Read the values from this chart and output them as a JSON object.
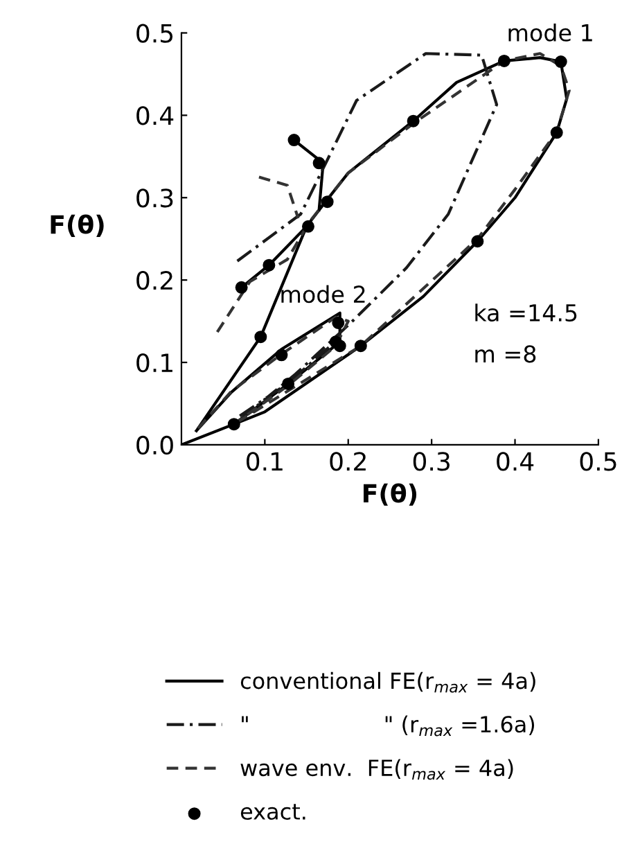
{
  "chart_data": {
    "type": "line",
    "xlabel": "F(θ)",
    "ylabel": "F(θ)",
    "xlim": [
      0,
      0.5
    ],
    "ylim": [
      0,
      0.5
    ],
    "xticks": [
      0.1,
      0.2,
      0.3,
      0.4,
      0.5
    ],
    "yticks": [
      {
        "value": 0,
        "label": "0.0"
      },
      0.1,
      0.2,
      0.3,
      0.4,
      0.5
    ],
    "grid": false,
    "legend": "bottom",
    "series": [
      {
        "name": "conventional FE(r$_{max}$ = 4a)",
        "color": "#000000",
        "line_style": "solid",
        "marker": "none",
        "x": [
          0.0,
          0.063,
          0.1,
          0.215,
          0.29,
          0.355,
          0.4,
          0.45,
          0.462,
          0.455,
          0.43,
          0.387,
          0.33,
          0.278,
          0.2,
          0.165,
          0.15,
          0.095,
          0.018,
          null,
          0.165,
          0.17,
          0.135,
          null,
          0.072,
          0.105,
          0.15,
          0.165,
          null,
          0.018,
          0.06,
          0.12,
          0.19,
          0.19,
          0.128,
          0.063
        ],
        "values": [
          0.0,
          0.025,
          0.04,
          0.12,
          0.18,
          0.247,
          0.3,
          0.379,
          0.42,
          0.465,
          0.47,
          0.466,
          0.44,
          0.393,
          0.33,
          0.285,
          0.265,
          0.131,
          0.017,
          null,
          0.285,
          0.342,
          0.37,
          null,
          0.191,
          0.218,
          0.265,
          0.285,
          null,
          0.017,
          0.064,
          0.116,
          0.16,
          0.125,
          0.074,
          0.025
        ]
      },
      {
        "name": "\"                   \" (r$_{max}$ =1.6a)",
        "color": "#1a1a1a",
        "line_style": "dashdot",
        "marker": "none",
        "x": [
          0.067,
          0.143,
          0.21,
          0.293,
          0.36,
          0.378,
          0.32,
          0.27,
          0.203,
          0.137,
          0.07,
          null,
          0.07,
          0.128,
          0.19
        ],
        "values": [
          0.223,
          0.28,
          0.418,
          0.475,
          0.473,
          0.413,
          0.28,
          0.215,
          0.148,
          0.086,
          0.03,
          null,
          0.035,
          0.075,
          0.13
        ]
      },
      {
        "name": "wave env.  FE(r$_{max}$ = 4a)",
        "color": "#333333",
        "line_style": "dashed",
        "marker": "none",
        "x": [
          0.043,
          0.082,
          0.127,
          0.153,
          0.2,
          0.278,
          0.387,
          0.43,
          0.455,
          0.465,
          0.45,
          0.4,
          0.355,
          0.215,
          0.063,
          null,
          0.093,
          0.127,
          0.14,
          null,
          0.02,
          0.06,
          0.12,
          0.185,
          0.2,
          0.185,
          0.128,
          0.063
        ],
        "values": [
          0.137,
          0.198,
          0.225,
          0.27,
          0.33,
          0.39,
          0.466,
          0.475,
          0.46,
          0.43,
          0.38,
          0.31,
          0.25,
          0.12,
          0.025,
          null,
          0.325,
          0.315,
          0.275,
          null,
          0.02,
          0.065,
          0.11,
          0.155,
          0.15,
          0.12,
          0.072,
          0.025
        ]
      },
      {
        "name": "exact.",
        "type": "scatter",
        "color": "#000000",
        "marker": "circle",
        "x": [
          0.135,
          0.165,
          0.175,
          0.152,
          0.105,
          0.072,
          0.095,
          0.12,
          0.128,
          0.063,
          0.188,
          0.185,
          0.19,
          0.215,
          0.278,
          0.387,
          0.455,
          0.45,
          0.355
        ],
        "values": [
          0.37,
          0.342,
          0.295,
          0.265,
          0.218,
          0.191,
          0.131,
          0.109,
          0.074,
          0.025,
          0.148,
          0.125,
          0.12,
          0.12,
          0.393,
          0.466,
          0.465,
          0.379,
          0.247
        ]
      }
    ],
    "annotations": [
      "mode 1",
      "mode 2",
      "ka =14.5",
      "m =8"
    ]
  }
}
